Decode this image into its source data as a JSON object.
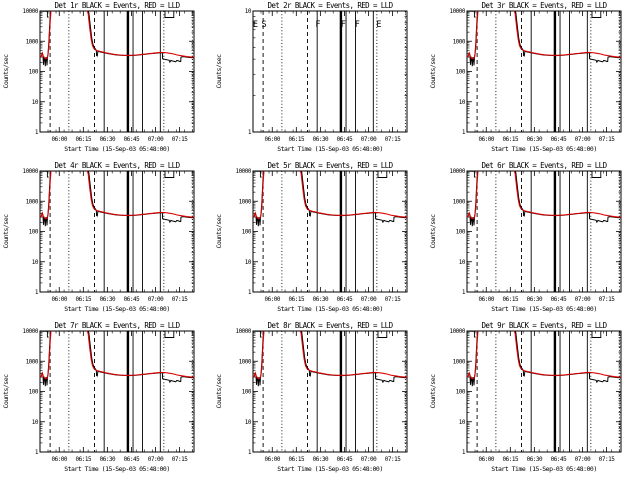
{
  "page": {
    "background": "#ffffff",
    "description_note": "3x3 grid of detector count-rate plots"
  },
  "chart_data": {
    "type": "line",
    "layout": "3x3-grid",
    "xlabel": "Start Time (15-Sep-03 05:48:00)",
    "ylabel": "Counts/sec",
    "x_axis": {
      "start_label": "05:48:00",
      "range_minutes": [
        0,
        96
      ],
      "ticks": [
        {
          "t": 12,
          "label": "06:00"
        },
        {
          "t": 27,
          "label": "06:15"
        },
        {
          "t": 42,
          "label": "06:30"
        },
        {
          "t": 57,
          "label": "06:45"
        },
        {
          "t": 72,
          "label": "07:00"
        },
        {
          "t": 87,
          "label": "07:15"
        }
      ],
      "minor_step_minutes": 5
    },
    "colors": {
      "events": "#000000",
      "lld": "#dd0000",
      "axis": "#000000"
    },
    "legend_note": "BLACK = Events, RED = LLD",
    "plots": [
      {
        "id": "det-1r",
        "title": "Det 1r BLACK = Events, RED = LLD",
        "ylim": [
          1,
          10000
        ],
        "ytick_labels": [
          "10000",
          "1000",
          "100",
          "10",
          "1"
        ],
        "has_data": true
      },
      {
        "id": "det-2r",
        "title": "Det 2r BLACK = Events, RED = LLD",
        "ylim": [
          1,
          10
        ],
        "ytick_labels": [
          "10",
          "1"
        ],
        "has_data": false,
        "letters": [
          {
            "t": 1.5,
            "ch": "E"
          },
          {
            "t": 6.9,
            "ch": "S"
          },
          {
            "t": 40.5,
            "ch": "F"
          },
          {
            "t": 56.3,
            "ch": "F"
          },
          {
            "t": 65.0,
            "ch": "F"
          },
          {
            "t": 78.5,
            "ch": "E"
          }
        ]
      },
      {
        "id": "det-3r",
        "title": "Det 3r BLACK = Events, RED = LLD",
        "ylim": [
          1,
          10000
        ],
        "ytick_labels": [
          "10000",
          "1000",
          "100",
          "10",
          "1"
        ],
        "has_data": true
      },
      {
        "id": "det-4r",
        "title": "Det 4r BLACK = Events, RED = LLD",
        "ylim": [
          1,
          10000
        ],
        "ytick_labels": [
          "10000",
          "1000",
          "100",
          "10",
          "1"
        ],
        "has_data": true
      },
      {
        "id": "det-5r",
        "title": "Det 5r BLACK = Events, RED = LLD",
        "ylim": [
          1,
          10000
        ],
        "ytick_labels": [
          "10000",
          "1000",
          "100",
          "10",
          "1"
        ],
        "has_data": true
      },
      {
        "id": "det-6r",
        "title": "Det 6r BLACK = Events, RED = LLD",
        "ylim": [
          1,
          10000
        ],
        "ytick_labels": [
          "10000",
          "1000",
          "100",
          "10",
          "1"
        ],
        "has_data": true
      },
      {
        "id": "det-7r",
        "title": "Det 7r BLACK = Events, RED = LLD",
        "ylim": [
          1,
          10000
        ],
        "ytick_labels": [
          "10000",
          "1000",
          "100",
          "10",
          "1"
        ],
        "has_data": true
      },
      {
        "id": "det-8r",
        "title": "Det 8r BLACK = Events, RED = LLD",
        "ylim": [
          1,
          10000
        ],
        "ytick_labels": [
          "10000",
          "1000",
          "100",
          "10",
          "1"
        ],
        "has_data": true
      },
      {
        "id": "det-9r",
        "title": "Det 9r BLACK = Events, RED = LLD",
        "ylim": [
          1,
          10000
        ],
        "ytick_labels": [
          "10000",
          "1000",
          "100",
          "10",
          "1"
        ],
        "has_data": true
      }
    ],
    "vlines": [
      {
        "t": 6.3,
        "style": "dashed"
      },
      {
        "t": 18.0,
        "style": "dotted"
      },
      {
        "t": 34.0,
        "style": "dashed"
      },
      {
        "t": 40.0,
        "style": "solid"
      },
      {
        "t": 54.8,
        "style": "thick"
      },
      {
        "t": 58.0,
        "style": "solid"
      },
      {
        "t": 63.9,
        "style": "solid"
      },
      {
        "t": 75.0,
        "style": "solid"
      },
      {
        "t": 77.2,
        "style": "dotted"
      },
      {
        "t": 95.0,
        "style": "dotted"
      }
    ],
    "series": {
      "events": [
        [
          0,
          290
        ],
        [
          0.7,
          310
        ],
        [
          1.3,
          400
        ],
        [
          1.9,
          330
        ],
        [
          2.2,
          165
        ],
        [
          2.5,
          310
        ],
        [
          2.9,
          260
        ],
        [
          3.3,
          150
        ],
        [
          3.7,
          300
        ],
        [
          4.1,
          265
        ],
        [
          4.35,
          160
        ],
        [
          4.7,
          300
        ],
        [
          5.0,
          380
        ],
        [
          5.5,
          900
        ],
        [
          6.0,
          3000
        ],
        [
          6.4,
          8000
        ],
        [
          6.7,
          11500
        ],
        [
          29.2,
          11500
        ],
        [
          30.4,
          9000
        ],
        [
          31.4,
          3000
        ],
        [
          32.2,
          1300
        ],
        [
          33.0,
          800
        ],
        [
          33.8,
          630
        ],
        [
          34.6,
          545
        ],
        [
          35.1,
          490
        ],
        [
          35.3,
          335
        ],
        [
          35.7,
          325
        ],
        [
          36.1,
          470
        ],
        [
          36.8,
          455
        ],
        [
          38,
          435
        ],
        [
          40,
          415
        ],
        [
          42,
          395
        ],
        [
          44,
          378
        ],
        [
          46,
          362
        ],
        [
          48,
          352
        ],
        [
          50,
          345
        ],
        [
          52,
          340
        ],
        [
          54,
          337
        ],
        [
          56,
          336
        ],
        [
          58,
          340
        ],
        [
          60,
          346
        ],
        [
          62,
          355
        ],
        [
          64,
          364
        ],
        [
          66,
          374
        ],
        [
          68,
          384
        ],
        [
          70,
          394
        ],
        [
          72,
          404
        ],
        [
          74,
          413
        ],
        [
          75.5,
          419
        ],
        [
          76.3,
          420
        ],
        [
          76.4,
          265
        ],
        [
          77.5,
          255
        ],
        [
          79,
          245
        ],
        [
          80.5,
          235
        ],
        [
          81,
          205
        ],
        [
          81.6,
          232
        ],
        [
          82.6,
          222
        ],
        [
          83.6,
          216
        ],
        [
          84.6,
          210
        ],
        [
          85.3,
          232
        ],
        [
          86.3,
          224
        ],
        [
          87.3,
          214
        ],
        [
          87.7,
          214
        ],
        [
          87.9,
          298
        ],
        [
          89,
          308
        ],
        [
          90.5,
          303
        ],
        [
          92,
          295
        ],
        [
          94,
          289
        ],
        [
          96,
          284
        ]
      ],
      "lld": [
        [
          0,
          295
        ],
        [
          0.9,
          330
        ],
        [
          1.5,
          405
        ],
        [
          2.2,
          305
        ],
        [
          3.0,
          272
        ],
        [
          3.8,
          265
        ],
        [
          4.4,
          278
        ],
        [
          4.9,
          330
        ],
        [
          5.4,
          600
        ],
        [
          5.9,
          1800
        ],
        [
          6.4,
          5000
        ],
        [
          6.9,
          11500
        ],
        [
          28.8,
          11500
        ],
        [
          30.0,
          8500
        ],
        [
          31.0,
          2800
        ],
        [
          31.9,
          1150
        ],
        [
          32.7,
          720
        ],
        [
          33.5,
          590
        ],
        [
          34.3,
          530
        ],
        [
          35.5,
          495
        ],
        [
          37,
          465
        ],
        [
          38.5,
          448
        ],
        [
          40,
          428
        ],
        [
          42,
          407
        ],
        [
          44,
          388
        ],
        [
          46,
          371
        ],
        [
          48,
          359
        ],
        [
          50,
          351
        ],
        [
          52,
          346
        ],
        [
          54,
          343
        ],
        [
          56,
          342
        ],
        [
          58,
          346
        ],
        [
          60,
          352
        ],
        [
          62,
          360
        ],
        [
          64,
          369
        ],
        [
          66,
          379
        ],
        [
          68,
          390
        ],
        [
          70,
          401
        ],
        [
          72,
          411
        ],
        [
          74,
          420
        ],
        [
          75.8,
          428
        ],
        [
          77.5,
          424
        ],
        [
          79.5,
          413
        ],
        [
          81.5,
          398
        ],
        [
          83.5,
          378
        ],
        [
          85.5,
          352
        ],
        [
          87.5,
          336
        ],
        [
          89.5,
          322
        ],
        [
          91.5,
          311
        ],
        [
          93.5,
          303
        ],
        [
          96,
          297
        ]
      ],
      "flag_segments": [
        [
          [
            0,
            9800
          ],
          [
            4.6,
            9800
          ],
          [
            4.6,
            6300
          ],
          [
            5.4,
            6300
          ]
        ],
        [
          [
            77.9,
            9800
          ],
          [
            77.9,
            6100
          ],
          [
            83.4,
            6100
          ],
          [
            83.4,
            9800
          ]
        ]
      ]
    }
  }
}
